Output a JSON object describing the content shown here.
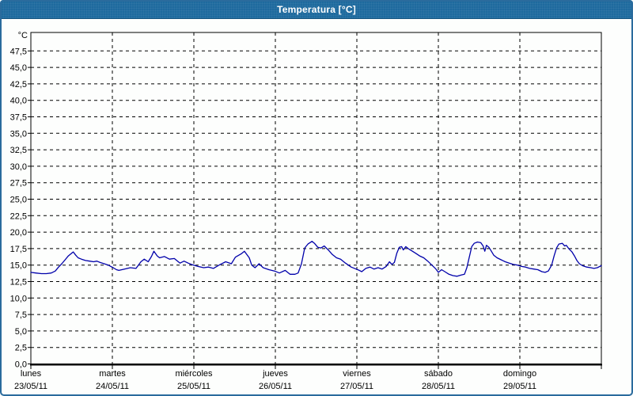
{
  "window": {
    "title": "Temperatura [°C]",
    "titlebar_color": "#1e6a9e",
    "border_color": "#2a6b9d"
  },
  "chart_data": {
    "type": "line",
    "title": "Temperatura [°C]",
    "grid": true,
    "grid_style": "dashed",
    "grid_color": "#000000",
    "background_color": "#fdfefd",
    "y_axis": {
      "unit": "°C",
      "min": 0,
      "max": 47.5,
      "step": 2.5,
      "tick_labels": [
        "0,0",
        "2,5",
        "5,0",
        "7,5",
        "10,0",
        "12,5",
        "15,0",
        "17,5",
        "20,0",
        "22,5",
        "25,0",
        "27,5",
        "30,0",
        "32,5",
        "35,0",
        "37,5",
        "40,0",
        "42,5",
        "45,0",
        "47,5"
      ]
    },
    "x_axis": {
      "categories": [
        {
          "day": "lunes",
          "date": "23/05/11"
        },
        {
          "day": "martes",
          "date": "24/05/11"
        },
        {
          "day": "miércoles",
          "date": "25/05/11"
        },
        {
          "day": "jueves",
          "date": "26/05/11"
        },
        {
          "day": "viernes",
          "date": "27/05/11"
        },
        {
          "day": "sábado",
          "date": "28/05/11"
        },
        {
          "day": "domingo",
          "date": "29/05/11"
        }
      ]
    },
    "series": [
      {
        "name": "Temperatura",
        "color": "#0000aa",
        "points": [
          [
            0.0,
            13.9
          ],
          [
            0.06,
            13.8
          ],
          [
            0.13,
            13.7
          ],
          [
            0.19,
            13.7
          ],
          [
            0.25,
            13.8
          ],
          [
            0.3,
            14.1
          ],
          [
            0.34,
            14.7
          ],
          [
            0.38,
            15.2
          ],
          [
            0.42,
            15.8
          ],
          [
            0.46,
            16.4
          ],
          [
            0.5,
            16.8
          ],
          [
            0.52,
            17.0
          ],
          [
            0.55,
            16.5
          ],
          [
            0.58,
            16.1
          ],
          [
            0.62,
            15.9
          ],
          [
            0.67,
            15.7
          ],
          [
            0.72,
            15.6
          ],
          [
            0.77,
            15.5
          ],
          [
            0.81,
            15.6
          ],
          [
            0.85,
            15.4
          ],
          [
            0.9,
            15.2
          ],
          [
            0.95,
            15.0
          ],
          [
            1.01,
            14.6
          ],
          [
            1.05,
            14.3
          ],
          [
            1.08,
            14.2
          ],
          [
            1.15,
            14.4
          ],
          [
            1.22,
            14.6
          ],
          [
            1.29,
            14.5
          ],
          [
            1.35,
            15.5
          ],
          [
            1.39,
            15.9
          ],
          [
            1.44,
            15.5
          ],
          [
            1.48,
            16.3
          ],
          [
            1.51,
            17.1
          ],
          [
            1.55,
            16.4
          ],
          [
            1.58,
            16.1
          ],
          [
            1.64,
            16.3
          ],
          [
            1.7,
            15.9
          ],
          [
            1.76,
            16.0
          ],
          [
            1.83,
            15.3
          ],
          [
            1.88,
            15.6
          ],
          [
            1.93,
            15.3
          ],
          [
            1.97,
            15.1
          ],
          [
            2.05,
            14.8
          ],
          [
            2.12,
            14.6
          ],
          [
            2.18,
            14.7
          ],
          [
            2.24,
            14.5
          ],
          [
            2.31,
            15.0
          ],
          [
            2.39,
            15.5
          ],
          [
            2.46,
            15.2
          ],
          [
            2.51,
            16.2
          ],
          [
            2.58,
            16.7
          ],
          [
            2.62,
            17.1
          ],
          [
            2.68,
            16.1
          ],
          [
            2.71,
            15.0
          ],
          [
            2.75,
            14.6
          ],
          [
            2.8,
            15.2
          ],
          [
            2.85,
            14.6
          ],
          [
            2.92,
            14.3
          ],
          [
            2.99,
            14.1
          ],
          [
            3.05,
            13.8
          ],
          [
            3.12,
            14.2
          ],
          [
            3.18,
            13.6
          ],
          [
            3.24,
            13.6
          ],
          [
            3.28,
            13.8
          ],
          [
            3.32,
            15.2
          ],
          [
            3.36,
            17.6
          ],
          [
            3.4,
            18.2
          ],
          [
            3.45,
            18.6
          ],
          [
            3.48,
            18.3
          ],
          [
            3.52,
            17.7
          ],
          [
            3.56,
            17.6
          ],
          [
            3.6,
            17.9
          ],
          [
            3.65,
            17.3
          ],
          [
            3.7,
            16.6
          ],
          [
            3.75,
            16.1
          ],
          [
            3.8,
            15.9
          ],
          [
            3.86,
            15.3
          ],
          [
            3.93,
            14.7
          ],
          [
            3.99,
            14.4
          ],
          [
            4.03,
            14.2
          ],
          [
            4.06,
            14.0
          ],
          [
            4.11,
            14.5
          ],
          [
            4.16,
            14.7
          ],
          [
            4.21,
            14.4
          ],
          [
            4.26,
            14.6
          ],
          [
            4.31,
            14.4
          ],
          [
            4.36,
            14.8
          ],
          [
            4.4,
            15.5
          ],
          [
            4.43,
            15.1
          ],
          [
            4.46,
            15.4
          ],
          [
            4.49,
            16.8
          ],
          [
            4.52,
            17.7
          ],
          [
            4.55,
            17.8
          ],
          [
            4.57,
            17.3
          ],
          [
            4.6,
            17.8
          ],
          [
            4.63,
            17.5
          ],
          [
            4.67,
            17.2
          ],
          [
            4.72,
            16.8
          ],
          [
            4.77,
            16.4
          ],
          [
            4.82,
            16.1
          ],
          [
            4.87,
            15.6
          ],
          [
            4.92,
            15.0
          ],
          [
            4.97,
            14.4
          ],
          [
            5.0,
            13.9
          ],
          [
            5.04,
            14.3
          ],
          [
            5.08,
            14.0
          ],
          [
            5.13,
            13.6
          ],
          [
            5.18,
            13.4
          ],
          [
            5.23,
            13.3
          ],
          [
            5.28,
            13.5
          ],
          [
            5.32,
            13.6
          ],
          [
            5.35,
            14.6
          ],
          [
            5.38,
            16.2
          ],
          [
            5.41,
            17.8
          ],
          [
            5.44,
            18.3
          ],
          [
            5.48,
            18.5
          ],
          [
            5.52,
            18.4
          ],
          [
            5.55,
            17.9
          ],
          [
            5.57,
            17.1
          ],
          [
            5.59,
            18.0
          ],
          [
            5.62,
            17.7
          ],
          [
            5.65,
            17.1
          ],
          [
            5.68,
            16.5
          ],
          [
            5.72,
            16.1
          ],
          [
            5.77,
            15.8
          ],
          [
            5.82,
            15.5
          ],
          [
            5.87,
            15.3
          ],
          [
            5.92,
            15.1
          ],
          [
            5.97,
            15.0
          ],
          [
            6.02,
            14.8
          ],
          [
            6.07,
            14.7
          ],
          [
            6.12,
            14.5
          ],
          [
            6.17,
            14.4
          ],
          [
            6.22,
            14.3
          ],
          [
            6.27,
            14.0
          ],
          [
            6.31,
            13.9
          ],
          [
            6.35,
            14.1
          ],
          [
            6.39,
            15.0
          ],
          [
            6.42,
            16.4
          ],
          [
            6.45,
            17.6
          ],
          [
            6.48,
            18.2
          ],
          [
            6.52,
            18.3
          ],
          [
            6.55,
            17.9
          ],
          [
            6.57,
            18.0
          ],
          [
            6.6,
            17.5
          ],
          [
            6.64,
            17.0
          ],
          [
            6.67,
            16.4
          ],
          [
            6.7,
            15.7
          ],
          [
            6.73,
            15.2
          ],
          [
            6.77,
            14.9
          ],
          [
            6.82,
            14.7
          ],
          [
            6.87,
            14.6
          ],
          [
            6.91,
            14.5
          ],
          [
            6.95,
            14.6
          ],
          [
            6.98,
            14.8
          ],
          [
            7.0,
            14.9
          ]
        ]
      }
    ]
  }
}
